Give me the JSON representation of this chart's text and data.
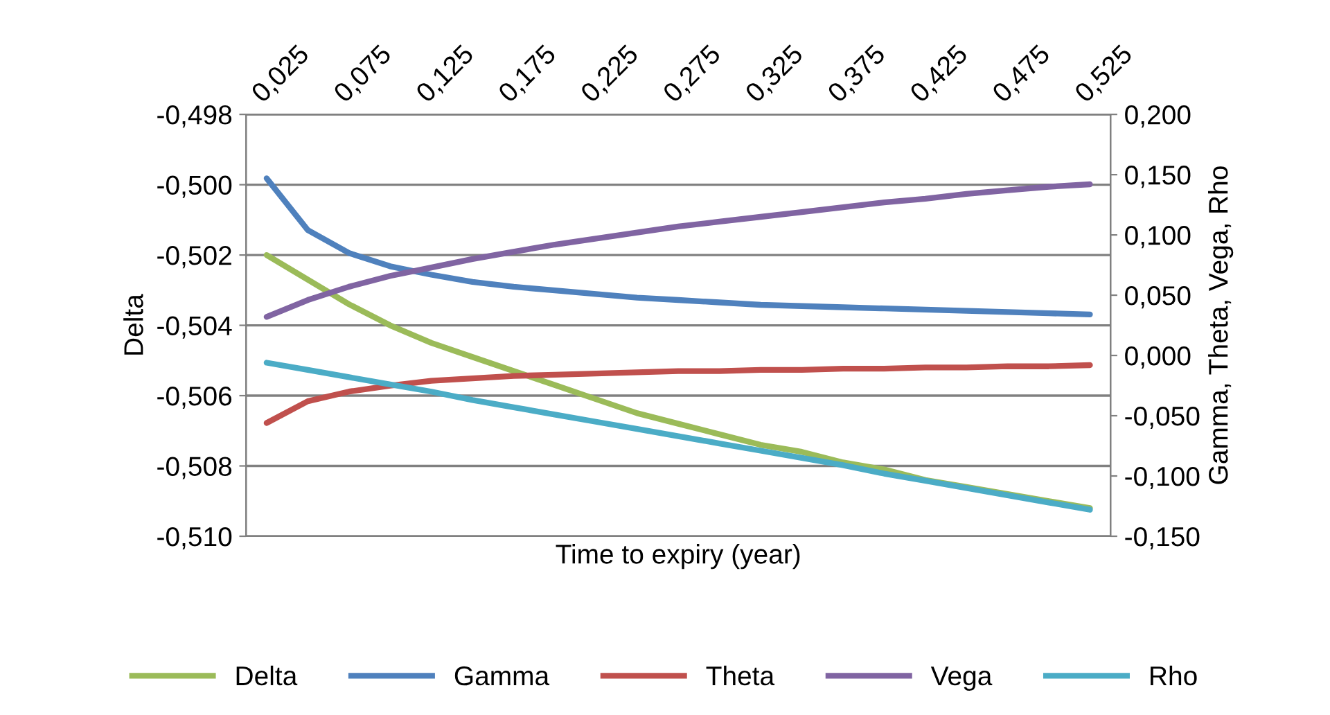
{
  "chart_data": {
    "type": "line",
    "xlabel": "Time to expiry (year)",
    "ylabel": "Delta",
    "y2label": "Gamma, Theta, Vega, Rho",
    "categories": [
      "0,025",
      null,
      "0,075",
      null,
      "0,125",
      null,
      "0,175",
      null,
      "0,225",
      null,
      "0,275",
      null,
      "0,325",
      null,
      "0,375",
      null,
      "0,425",
      null,
      "0,475",
      null,
      "0,525"
    ],
    "ylim": [
      -0.51,
      -0.498
    ],
    "yticks": [
      {
        "value": -0.51,
        "label": "-0,510"
      },
      {
        "value": -0.508,
        "label": "-0,508"
      },
      {
        "value": -0.506,
        "label": "-0,506"
      },
      {
        "value": -0.504,
        "label": "-0,504"
      },
      {
        "value": -0.502,
        "label": "-0,502"
      },
      {
        "value": -0.5,
        "label": "-0,500"
      },
      {
        "value": -0.498,
        "label": "-0,498"
      }
    ],
    "y2lim": [
      -0.15,
      0.2
    ],
    "y2ticks": [
      {
        "value": -0.15,
        "label": "-0,150"
      },
      {
        "value": -0.1,
        "label": "-0,100"
      },
      {
        "value": -0.05,
        "label": "-0,050"
      },
      {
        "value": 0.0,
        "label": "0,000"
      },
      {
        "value": 0.05,
        "label": "0,050"
      },
      {
        "value": 0.1,
        "label": "0,100"
      },
      {
        "value": 0.15,
        "label": "0,150"
      },
      {
        "value": 0.2,
        "label": "0,200"
      }
    ],
    "grid": "y",
    "legend": "bottom",
    "marker": "none",
    "line_style": "solid",
    "series": [
      {
        "name": "Delta",
        "color": "#9bbb59",
        "values": [
          -0.502,
          -0.5027,
          -0.5034,
          -0.504,
          -0.5045,
          -0.5049,
          -0.5053,
          -0.5057,
          -0.5061,
          -0.5065,
          -0.5068,
          -0.5071,
          -0.5074,
          -0.5076,
          -0.5079,
          -0.5081,
          -0.5084,
          -0.5086,
          -0.5088,
          -0.509,
          -0.5092
        ]
      },
      {
        "name": "Gamma",
        "color": "#4f81bd",
        "axis": "y2",
        "values": [
          0.147,
          0.104,
          0.085,
          0.074,
          0.067,
          0.061,
          0.057,
          0.054,
          0.051,
          0.048,
          0.046,
          0.044,
          0.042,
          0.041,
          0.04,
          0.039,
          0.038,
          0.037,
          0.036,
          0.035,
          0.034
        ]
      },
      {
        "name": "Theta",
        "color": "#c0504d",
        "axis": "y2",
        "values": [
          -0.056,
          -0.038,
          -0.03,
          -0.025,
          -0.021,
          -0.019,
          -0.017,
          -0.016,
          -0.015,
          -0.014,
          -0.013,
          -0.013,
          -0.012,
          -0.012,
          -0.011,
          -0.011,
          -0.01,
          -0.01,
          -0.009,
          -0.009,
          -0.008
        ]
      },
      {
        "name": "Vega",
        "color": "#8064a2",
        "axis": "y2",
        "values": [
          0.032,
          0.046,
          0.057,
          0.066,
          0.073,
          0.08,
          0.086,
          0.092,
          0.097,
          0.102,
          0.107,
          0.111,
          0.115,
          0.119,
          0.123,
          0.127,
          0.13,
          0.134,
          0.137,
          0.14,
          0.142
        ]
      },
      {
        "name": "Rho",
        "color": "#4bacc6",
        "axis": "y2",
        "values": [
          -0.006,
          -0.012,
          -0.018,
          -0.024,
          -0.03,
          -0.037,
          -0.043,
          -0.049,
          -0.055,
          -0.061,
          -0.067,
          -0.073,
          -0.079,
          -0.085,
          -0.091,
          -0.098,
          -0.104,
          -0.11,
          -0.116,
          -0.122,
          -0.128
        ]
      }
    ]
  }
}
